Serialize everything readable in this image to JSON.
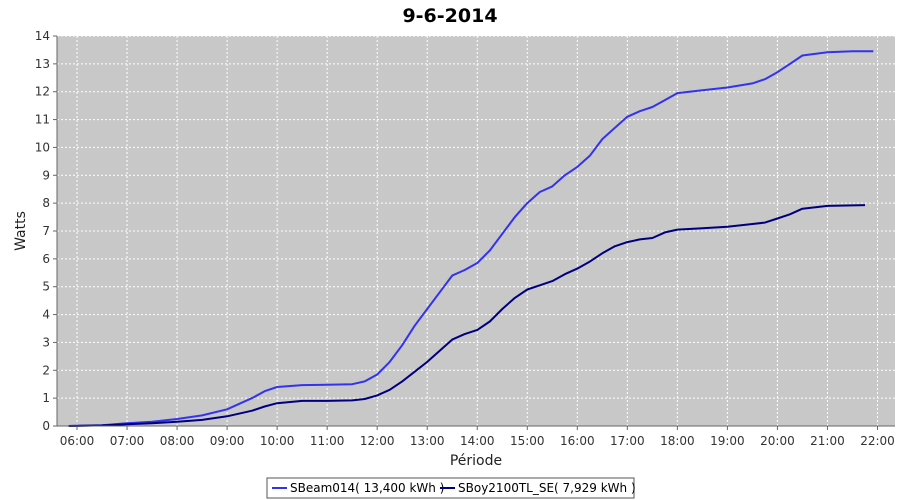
{
  "chart_data": {
    "type": "line",
    "title": "9-6-2014",
    "xlabel": "Période",
    "ylabel": "Watts",
    "ylim": [
      0,
      14
    ],
    "xlim": [
      5.6,
      22.35
    ],
    "grid": true,
    "legend_placement": "bottom-center",
    "colors": {
      "plot_background": "#c8c8c8",
      "grid": "#ffffff",
      "axis": "#666666"
    },
    "x_ticks": [
      "06:00",
      "07:00",
      "08:00",
      "09:00",
      "10:00",
      "11:00",
      "12:00",
      "13:00",
      "14:00",
      "15:00",
      "16:00",
      "17:00",
      "18:00",
      "19:00",
      "20:00",
      "21:00",
      "22:00"
    ],
    "y_ticks": [
      "0",
      "1",
      "2",
      "3",
      "4",
      "5",
      "6",
      "7",
      "8",
      "9",
      "10",
      "11",
      "12",
      "13",
      "14"
    ],
    "series": [
      {
        "name": "SBeam014( 13,400 kWh )",
        "color": "#3333ee",
        "x": [
          "05:50",
          "06:30",
          "07:00",
          "07:30",
          "08:00",
          "08:30",
          "09:00",
          "09:30",
          "09:45",
          "10:00",
          "10:30",
          "11:00",
          "11:30",
          "11:45",
          "12:00",
          "12:15",
          "12:30",
          "12:45",
          "13:00",
          "13:15",
          "13:30",
          "13:45",
          "14:00",
          "14:15",
          "14:30",
          "14:45",
          "15:00",
          "15:15",
          "15:30",
          "15:45",
          "16:00",
          "16:15",
          "16:30",
          "16:45",
          "17:00",
          "17:15",
          "17:30",
          "17:45",
          "18:00",
          "18:30",
          "19:00",
          "19:30",
          "19:45",
          "20:00",
          "20:15",
          "20:30",
          "21:00",
          "21:30",
          "21:55"
        ],
        "y": [
          0.0,
          0.03,
          0.1,
          0.15,
          0.25,
          0.38,
          0.6,
          1.0,
          1.25,
          1.4,
          1.47,
          1.48,
          1.5,
          1.6,
          1.85,
          2.3,
          2.9,
          3.6,
          4.2,
          4.8,
          5.4,
          5.6,
          5.85,
          6.3,
          6.9,
          7.5,
          8.0,
          8.4,
          8.6,
          9.0,
          9.3,
          9.7,
          10.3,
          10.7,
          11.1,
          11.3,
          11.45,
          11.7,
          11.95,
          12.05,
          12.15,
          12.3,
          12.45,
          12.7,
          13.0,
          13.3,
          13.42,
          13.45,
          13.45
        ]
      },
      {
        "name": "SBoy2100TL_SE( 7,929 kWh )",
        "color": "#00007f",
        "x": [
          "05:50",
          "06:30",
          "07:00",
          "07:30",
          "08:00",
          "08:30",
          "09:00",
          "09:30",
          "09:45",
          "10:00",
          "10:30",
          "11:00",
          "11:30",
          "11:45",
          "12:00",
          "12:15",
          "12:30",
          "12:45",
          "13:00",
          "13:15",
          "13:30",
          "13:45",
          "14:00",
          "14:15",
          "14:30",
          "14:45",
          "15:00",
          "15:15",
          "15:30",
          "15:45",
          "16:00",
          "16:15",
          "16:30",
          "16:45",
          "17:00",
          "17:15",
          "17:30",
          "17:45",
          "18:00",
          "18:30",
          "19:00",
          "19:30",
          "19:45",
          "20:00",
          "20:15",
          "20:30",
          "21:00",
          "21:30",
          "21:45"
        ],
        "y": [
          0.0,
          0.02,
          0.06,
          0.1,
          0.15,
          0.22,
          0.35,
          0.55,
          0.7,
          0.82,
          0.9,
          0.9,
          0.92,
          0.97,
          1.1,
          1.3,
          1.6,
          1.95,
          2.3,
          2.7,
          3.1,
          3.3,
          3.45,
          3.75,
          4.2,
          4.6,
          4.9,
          5.05,
          5.2,
          5.45,
          5.65,
          5.9,
          6.2,
          6.45,
          6.6,
          6.7,
          6.75,
          6.95,
          7.05,
          7.1,
          7.15,
          7.25,
          7.3,
          7.45,
          7.6,
          7.8,
          7.9,
          7.92,
          7.93
        ]
      }
    ]
  }
}
